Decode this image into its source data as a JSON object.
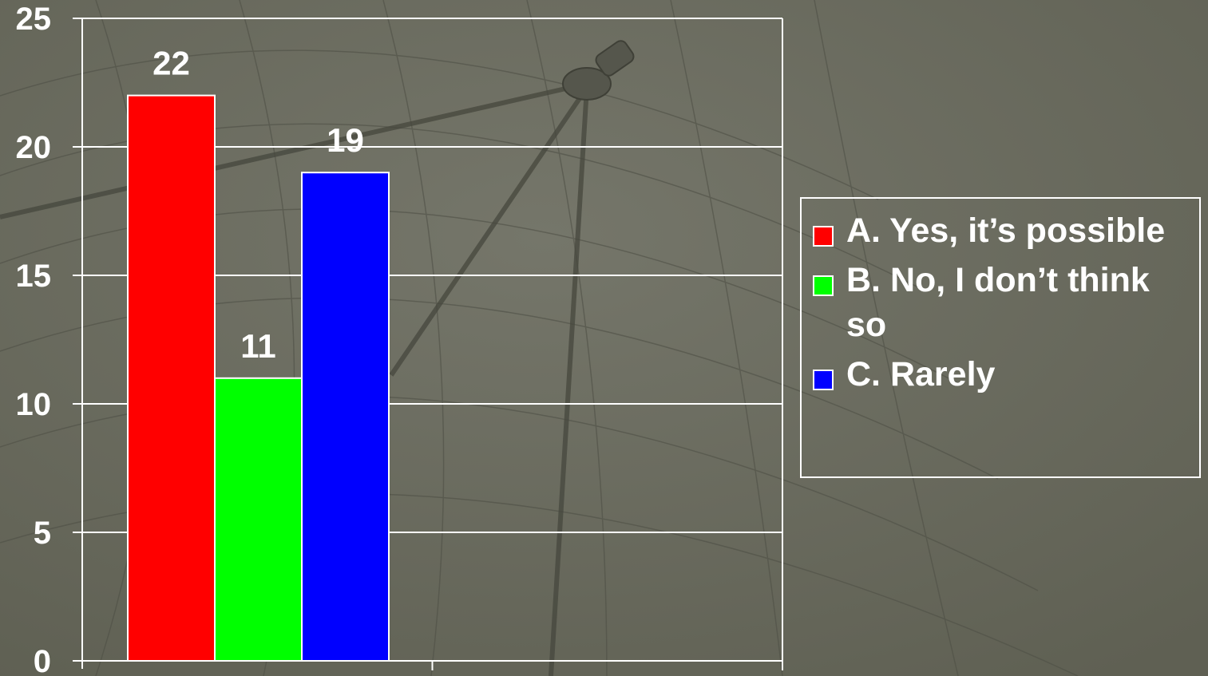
{
  "chart_data": {
    "type": "bar",
    "categories": [
      "A. Yes, it’s possible",
      "B. No, I don’t think so",
      "C. Rarely"
    ],
    "values": [
      22,
      11,
      19
    ],
    "colors": [
      "#ff0000",
      "#00ff00",
      "#0000ff"
    ],
    "ylim": [
      0,
      25
    ],
    "yticks": [
      "0",
      "5",
      "10",
      "15",
      "20",
      "25"
    ],
    "data_labels": [
      "22",
      "11",
      "19"
    ],
    "grid": true,
    "legend_position": "right"
  },
  "legend": {
    "items": [
      {
        "label": "A. Yes, it’s possible",
        "color": "#ff0000"
      },
      {
        "label": "B. No, I don’t think so",
        "color": "#00ff00"
      },
      {
        "label": "C. Rarely",
        "color": "#0000ff"
      }
    ]
  }
}
